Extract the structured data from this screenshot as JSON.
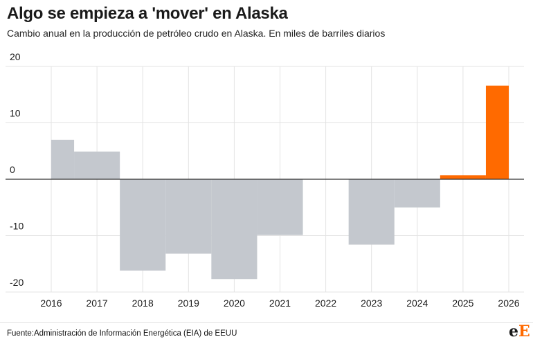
{
  "header": {
    "title": "Algo se empieza a 'mover' en Alaska",
    "subtitle": "Cambio anual en la producción de petróleo crudo en Alaska. En miles de barriles diarios"
  },
  "footer": {
    "source": "Fuente:Administración de Información Energética (EIA) de EEUU",
    "logo_e1": "e",
    "logo_e2": "E"
  },
  "colors": {
    "historical": "#c4c8ce",
    "forecast": "#ff6a00",
    "gridline": "#e3e3e3",
    "zeroline": "#333333"
  },
  "chart_data": {
    "type": "bar",
    "title": "Algo se empieza a 'mover' en Alaska",
    "subtitle": "Cambio anual en la producción de petróleo crudo en Alaska. En miles de barriles diarios",
    "xlabel": "",
    "ylabel": "",
    "ylim": [
      -20,
      20
    ],
    "yticks": [
      20,
      10,
      0,
      -10,
      -20
    ],
    "xticks": [
      "2016",
      "2017",
      "2018",
      "2019",
      "2020",
      "2021",
      "2022",
      "2023",
      "2024",
      "2025",
      "2026"
    ],
    "grid": true,
    "segments": [
      {
        "start": 2016.0,
        "end": 2016.5,
        "value": 7,
        "type": "historical"
      },
      {
        "start": 2016.5,
        "end": 2017.5,
        "value": 4.9,
        "type": "historical"
      },
      {
        "start": 2017.5,
        "end": 2018.5,
        "value": -16.2,
        "type": "historical"
      },
      {
        "start": 2018.5,
        "end": 2019.5,
        "value": -13.2,
        "type": "historical"
      },
      {
        "start": 2019.5,
        "end": 2020.5,
        "value": -17.7,
        "type": "historical"
      },
      {
        "start": 2020.5,
        "end": 2021.5,
        "value": -9.9,
        "type": "historical"
      },
      {
        "start": 2021.5,
        "end": 2022.5,
        "value": 0,
        "type": "historical"
      },
      {
        "start": 2022.5,
        "end": 2023.5,
        "value": -11.6,
        "type": "historical"
      },
      {
        "start": 2023.5,
        "end": 2024.5,
        "value": -5,
        "type": "historical"
      },
      {
        "start": 2024.5,
        "end": 2025.5,
        "value": 0.7,
        "type": "forecast"
      },
      {
        "start": 2025.5,
        "end": 2026.0,
        "value": 16.6,
        "type": "forecast"
      }
    ]
  }
}
